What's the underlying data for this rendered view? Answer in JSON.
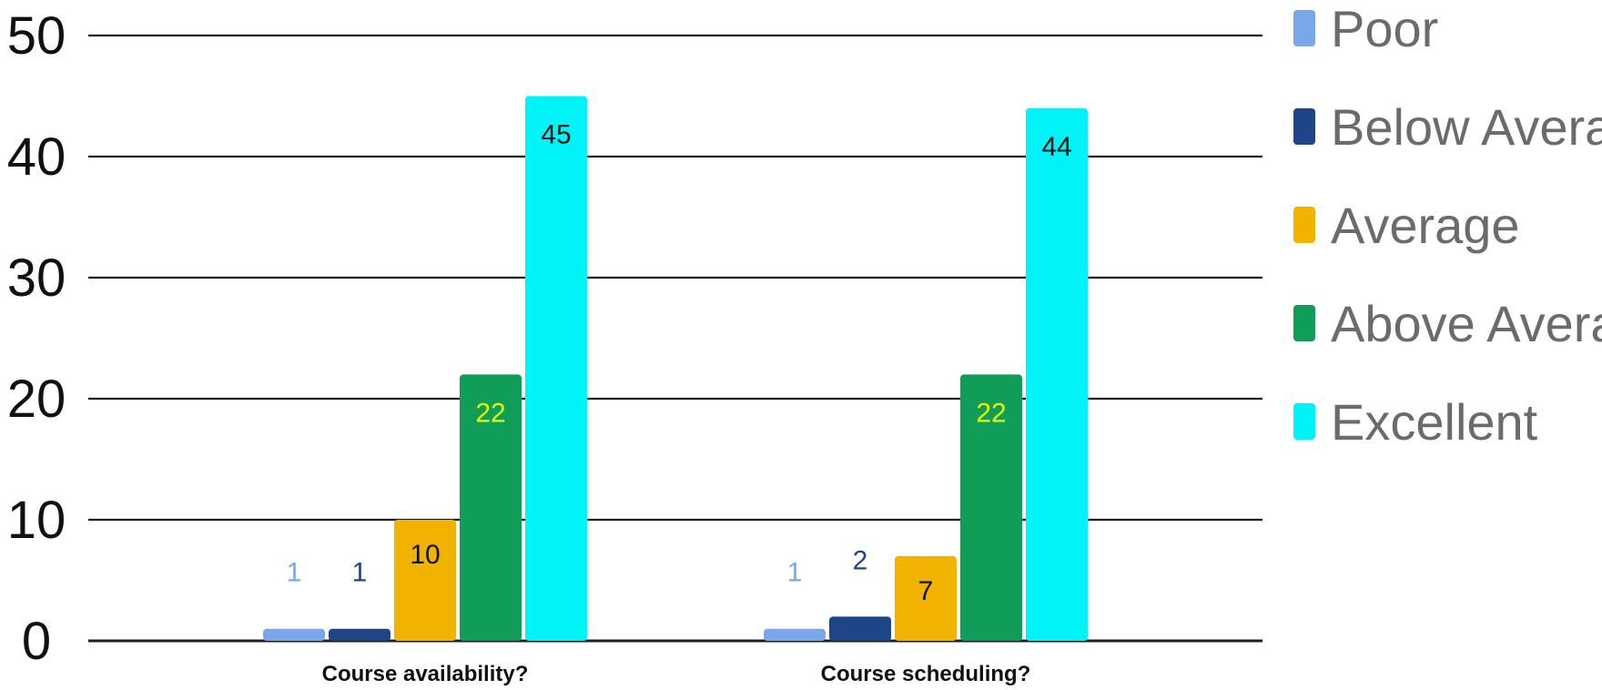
{
  "chart_data": {
    "type": "bar",
    "categories": [
      "Course availability?",
      "Course scheduling?"
    ],
    "series": [
      {
        "name": "Poor",
        "values": [
          1,
          1
        ],
        "color": "#79a7ea",
        "label_color": "#79a7ea"
      },
      {
        "name": "Below Average",
        "values": [
          1,
          2
        ],
        "color": "#1d4587",
        "label_color": "#1d4587"
      },
      {
        "name": "Average",
        "values": [
          10,
          7
        ],
        "color": "#f2b300",
        "label_color": "#111111"
      },
      {
        "name": "Above Average",
        "values": [
          22,
          22
        ],
        "color": "#0f9d58",
        "label_color": "#e8f500"
      },
      {
        "name": "Excellent",
        "values": [
          45,
          44
        ],
        "color": "#00f3f6",
        "label_color": "#111111"
      }
    ],
    "yticks": [
      "0",
      "10",
      "20",
      "30",
      "40",
      "50"
    ],
    "ylim": [
      0,
      50
    ],
    "grid": true,
    "legend": "right"
  }
}
